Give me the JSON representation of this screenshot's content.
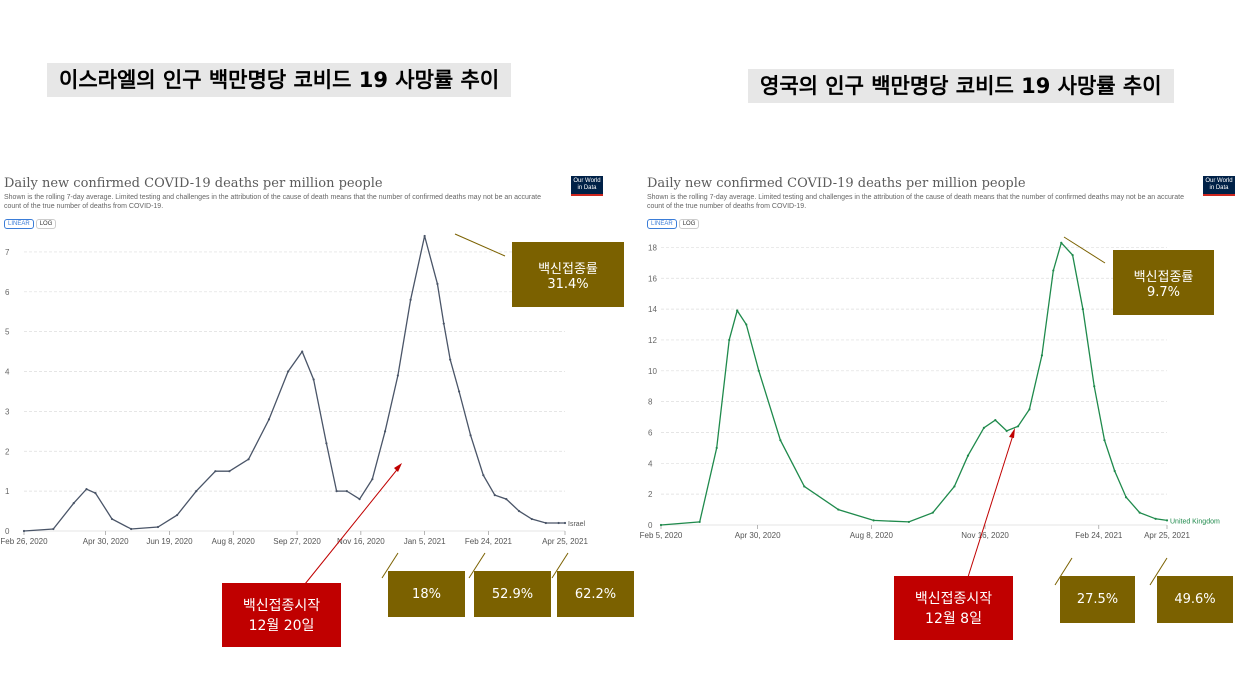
{
  "colors": {
    "israel_line": "#4a5568",
    "uk_line": "#1f8a4c",
    "olive": "#7b6100",
    "red": "#c00000"
  },
  "left": {
    "heading": "이스라엘의 인구 백만명당 코비드 19 사망률 추이",
    "logo_line1": "Our World",
    "logo_line2": "in Data",
    "scale_linear": "LINEAR",
    "scale_log": "LOG",
    "annotations": {
      "peak_box_label": "백신접종률",
      "peak_box_value": "31.4%",
      "start_box_line1": "백신접종시작",
      "start_box_line2": "12월 20일",
      "rate_18": "18%",
      "rate_529": "52.9%",
      "rate_622": "62.2%"
    }
  },
  "right": {
    "heading": "영국의 인구 백만명당 코비드 19 사망률 추이",
    "logo_line1": "Our World",
    "logo_line2": "in Data",
    "scale_linear": "LINEAR",
    "scale_log": "LOG",
    "annotations": {
      "peak_box_label": "백신접종률",
      "peak_box_value": "9.7%",
      "start_box_line1": "백신접종시작",
      "start_box_line2": "12월 8일",
      "rate_275": "27.5%",
      "rate_496": "49.6%"
    }
  },
  "chart_data": [
    {
      "type": "line",
      "title": "Daily new confirmed COVID-19 deaths per million people",
      "subtitle": "Shown is the rolling 7-day average. Limited testing and challenges in the attribution of the cause of death means that the number of confirmed deaths may not be an accurate count of the true number of deaths from COVID-19.",
      "x_ticks": [
        "Feb 26, 2020",
        "Apr 30, 2020",
        "Jun 19, 2020",
        "Aug 8, 2020",
        "Sep 27, 2020",
        "Nov 16, 2020",
        "Jan 5, 2021",
        "Feb 24, 2021",
        "Apr 25, 2021"
      ],
      "y_ticks": [
        0,
        1,
        2,
        3,
        4,
        5,
        6,
        7
      ],
      "ylim": [
        0,
        7.6
      ],
      "series": [
        {
          "name": "Israel",
          "x": [
            "2020-02-26",
            "2020-03-20",
            "2020-04-05",
            "2020-04-15",
            "2020-04-22",
            "2020-05-05",
            "2020-05-20",
            "2020-06-10",
            "2020-06-25",
            "2020-07-10",
            "2020-07-25",
            "2020-08-05",
            "2020-08-20",
            "2020-09-05",
            "2020-09-20",
            "2020-10-01",
            "2020-10-10",
            "2020-10-20",
            "2020-10-28",
            "2020-11-05",
            "2020-11-15",
            "2020-11-25",
            "2020-12-05",
            "2020-12-15",
            "2020-12-25",
            "2021-01-05",
            "2021-01-15",
            "2021-01-20",
            "2021-01-25",
            "2021-02-01",
            "2021-02-10",
            "2021-02-20",
            "2021-03-01",
            "2021-03-10",
            "2021-03-20",
            "2021-03-30",
            "2021-04-10",
            "2021-04-20",
            "2021-04-25"
          ],
          "y": [
            0,
            0.05,
            0.7,
            1.05,
            0.95,
            0.3,
            0.05,
            0.1,
            0.4,
            1.0,
            1.5,
            1.5,
            1.8,
            2.8,
            4.0,
            4.5,
            3.8,
            2.2,
            1.0,
            1.0,
            0.8,
            1.3,
            2.5,
            3.9,
            5.8,
            7.4,
            6.2,
            5.2,
            4.3,
            3.5,
            2.4,
            1.4,
            0.9,
            0.8,
            0.5,
            0.3,
            0.2,
            0.2,
            0.2
          ]
        }
      ]
    },
    {
      "type": "line",
      "title": "Daily new confirmed COVID-19 deaths per million people",
      "subtitle": "Shown is the rolling 7-day average. Limited testing and challenges in the attribution of the cause of death means that the number of confirmed deaths may not be an accurate count of the true number of deaths from COVID-19.",
      "x_ticks": [
        "Feb 5, 2020",
        "Apr 30, 2020",
        "Aug 8, 2020",
        "Nov 16, 2020",
        "Feb 24, 2021",
        "Apr 25, 2021"
      ],
      "y_ticks": [
        0,
        2,
        4,
        6,
        8,
        10,
        12,
        14,
        16,
        18
      ],
      "ylim": [
        0,
        19
      ],
      "series": [
        {
          "name": "United Kingdom",
          "x": [
            "2020-02-05",
            "2020-03-10",
            "2020-03-25",
            "2020-04-05",
            "2020-04-12",
            "2020-04-20",
            "2020-05-01",
            "2020-05-20",
            "2020-06-10",
            "2020-07-10",
            "2020-08-10",
            "2020-09-10",
            "2020-10-01",
            "2020-10-20",
            "2020-11-01",
            "2020-11-15",
            "2020-11-25",
            "2020-12-05",
            "2020-12-15",
            "2020-12-25",
            "2021-01-05",
            "2021-01-15",
            "2021-01-22",
            "2021-02-01",
            "2021-02-10",
            "2021-02-20",
            "2021-03-01",
            "2021-03-10",
            "2021-03-20",
            "2021-04-01",
            "2021-04-15",
            "2021-04-25"
          ],
          "y": [
            0,
            0.2,
            5,
            12,
            13.9,
            13,
            10,
            5.5,
            2.5,
            1.0,
            0.3,
            0.2,
            0.8,
            2.5,
            4.5,
            6.3,
            6.8,
            6.1,
            6.4,
            7.5,
            11,
            16.5,
            18.3,
            17.5,
            14,
            9,
            5.5,
            3.5,
            1.8,
            0.8,
            0.4,
            0.3
          ]
        }
      ]
    }
  ]
}
